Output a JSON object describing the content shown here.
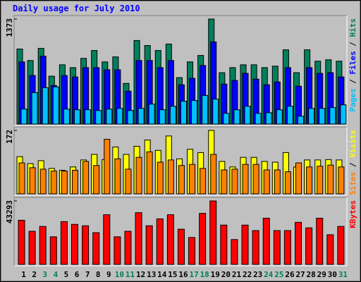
{
  "title": "Daily usage for July 2010",
  "chart_data": [
    {
      "type": "bar",
      "ylim": [
        0,
        1373
      ],
      "yticks": [
        1373
      ],
      "legend_separator": " / ",
      "series": [
        {
          "name": "Hits",
          "color": "#00805c",
          "values": [
            981,
            831,
            990,
            626,
            775,
            738,
            859,
            962,
            813,
            878,
            532,
            1093,
            1027,
            962,
            1046,
            607,
            813,
            897,
            1373,
            672,
            738,
            775,
            775,
            738,
            757,
            971,
            672,
            971,
            822,
            841,
            822
          ]
        },
        {
          "name": "Files",
          "color": "#0000ff",
          "values": [
            813,
            635,
            887,
            504,
            635,
            616,
            738,
            738,
            710,
            710,
            430,
            831,
            831,
            738,
            831,
            514,
            598,
            766,
            1074,
            523,
            570,
            663,
            588,
            514,
            551,
            738,
            495,
            738,
            663,
            672,
            616
          ]
        },
        {
          "name": "Pages",
          "color": "#00c0ff",
          "values": [
            196,
            411,
            476,
            486,
            196,
            187,
            187,
            177,
            196,
            205,
            177,
            205,
            261,
            187,
            233,
            299,
            308,
            374,
            327,
            140,
            187,
            233,
            140,
            149,
            187,
            233,
            103,
            205,
            205,
            215,
            252
          ]
        }
      ]
    },
    {
      "type": "bar",
      "ylim": [
        0,
        172
      ],
      "yticks": [
        172
      ],
      "legend_separator": " / ",
      "series": [
        {
          "name": "Visits",
          "color": "#ffff00",
          "values": [
            101,
            82,
            90,
            69,
            64,
            73,
            92,
            107,
            93,
            127,
            107,
            129,
            146,
            118,
            157,
            95,
            121,
            112,
            172,
            88,
            73,
            99,
            99,
            88,
            86,
            112,
            73,
            92,
            92,
            93,
            92
          ]
        },
        {
          "name": "Sites",
          "color": "#ff8000",
          "values": [
            84,
            71,
            67,
            62,
            62,
            64,
            88,
            77,
            148,
            95,
            67,
            99,
            114,
            86,
            92,
            77,
            80,
            69,
            107,
            65,
            67,
            80,
            80,
            65,
            65,
            60,
            84,
            73,
            75,
            78,
            73
          ]
        }
      ]
    },
    {
      "type": "bar",
      "ylim": [
        0,
        43293
      ],
      "yticks": [
        43293
      ],
      "categories": [
        "1",
        "2",
        "3",
        "4",
        "5",
        "6",
        "7",
        "8",
        "9",
        "10",
        "11",
        "12",
        "13",
        "14",
        "15",
        "16",
        "17",
        "18",
        "19",
        "20",
        "21",
        "22",
        "23",
        "24",
        "25",
        "26",
        "27",
        "28",
        "29",
        "30",
        "31"
      ],
      "label_colors": [
        "#000000",
        "#000000",
        "#00805c",
        "#00805c",
        "#000000",
        "#000000",
        "#000000",
        "#000000",
        "#000000",
        "#00805c",
        "#00805c",
        "#000000",
        "#000000",
        "#000000",
        "#000000",
        "#000000",
        "#00805c",
        "#00805c",
        "#000000",
        "#000000",
        "#000000",
        "#000000",
        "#000000",
        "#00805c",
        "#00805c",
        "#000000",
        "#000000",
        "#000000",
        "#000000",
        "#000000",
        "#00805c"
      ],
      "series": [
        {
          "name": "KBytes",
          "color": "#ff0000",
          "values": [
            30117,
            22588,
            25882,
            18823,
            29176,
            27293,
            26352,
            21646,
            33882,
            18823,
            22588,
            35293,
            26352,
            31058,
            33882,
            24000,
            18352,
            34823,
            43293,
            26823,
            16941,
            26823,
            23058,
            31529,
            23058,
            23058,
            28705,
            24941,
            31529,
            20235,
            25882
          ]
        }
      ]
    }
  ]
}
